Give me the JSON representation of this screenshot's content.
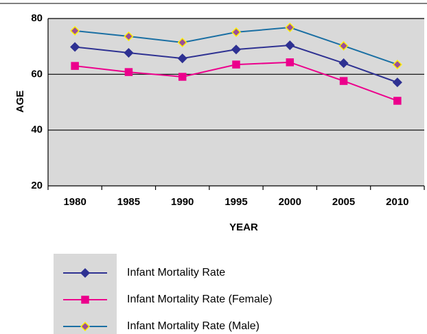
{
  "chart_data": {
    "type": "line",
    "x_label": "YEAR",
    "y_label": "AGE",
    "categories": [
      "1980",
      "1985",
      "1990",
      "1995",
      "2000",
      "2005",
      "2010"
    ],
    "series": [
      {
        "name": "Infant Mortality Rate",
        "color": "#2e3192",
        "marker": "diamond",
        "marker_fill": "#2e3192",
        "marker_stroke": "#2e3192",
        "values": [
          69.8,
          67.7,
          65.7,
          68.9,
          70.4,
          64.0,
          57.1
        ]
      },
      {
        "name": "Infant Mortality Rate (Female)",
        "color": "#ec008c",
        "marker": "square",
        "marker_fill": "#ec008c",
        "marker_stroke": "#ec008c",
        "values": [
          63.0,
          60.8,
          59.1,
          63.5,
          64.3,
          57.6,
          50.5
        ]
      },
      {
        "name": "Infant Mortality Rate (Male)",
        "color": "#1a6fa3",
        "marker": "diamond",
        "marker_fill": "#9b4f96",
        "marker_stroke": "#fff200",
        "values": [
          75.6,
          73.6,
          71.4,
          75.1,
          76.8,
          70.2,
          63.5
        ]
      }
    ],
    "ylim": [
      20,
      80
    ],
    "yticks": [
      20,
      40,
      60,
      80
    ],
    "grid": true,
    "plot_background": "#d9d9d9",
    "legend": "bottom"
  }
}
